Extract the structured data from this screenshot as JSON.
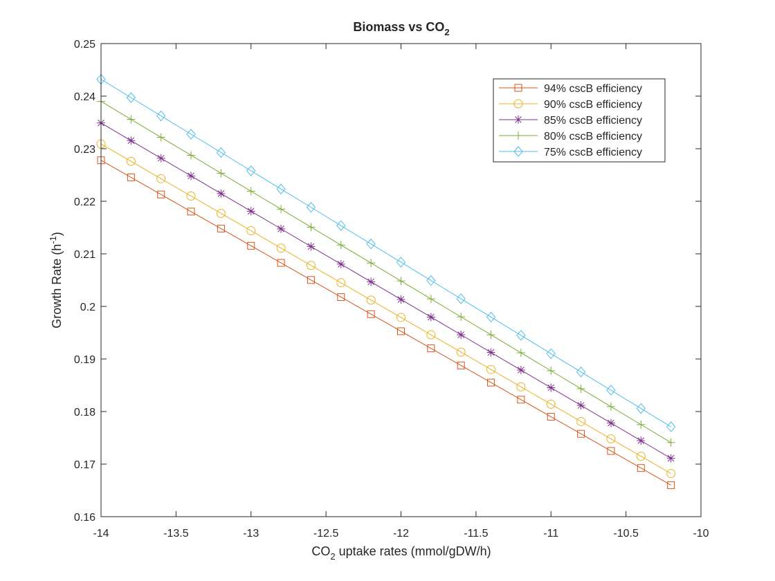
{
  "chart_data": {
    "type": "line",
    "title": "Biomass vs CO",
    "title_sub": "2",
    "xlabel_pre": "CO",
    "xlabel_sub": "2",
    "xlabel_post": " uptake rates (mmol/gDW/h)",
    "ylabel_pre": "Growth Rate (h",
    "ylabel_sup": "-1",
    "ylabel_post": ")",
    "xlim": [
      -14,
      -10
    ],
    "ylim": [
      0.16,
      0.25
    ],
    "x_ticks": [
      -14,
      -13.5,
      -13,
      -12.5,
      -12,
      -11.5,
      -11,
      -10.5,
      -10
    ],
    "x_tick_labels": [
      "-14",
      "-13.5",
      "-13",
      "-12.5",
      "-12",
      "-11.5",
      "-11",
      "-10.5",
      "-10"
    ],
    "y_ticks": [
      0.16,
      0.17,
      0.18,
      0.19,
      0.2,
      0.21,
      0.22,
      0.23,
      0.24,
      0.25
    ],
    "y_tick_labels": [
      "0.16",
      "0.17",
      "0.18",
      "0.19",
      "0.2",
      "0.21",
      "0.22",
      "0.23",
      "0.24",
      "0.25"
    ],
    "grid": false,
    "legend_position": "top-right",
    "x": [
      -14,
      -13.8,
      -13.6,
      -13.4,
      -13.2,
      -13,
      -12.8,
      -12.6,
      -12.4,
      -12.2,
      -12,
      -11.8,
      -11.6,
      -11.4,
      -11.2,
      -11,
      -10.8,
      -10.6,
      -10.4,
      -10.2
    ],
    "series": [
      {
        "name": "94% cscB efficiency",
        "color": "#D95319",
        "marker": "square",
        "y_start": 0.2278,
        "y_end": 0.166
      },
      {
        "name": "90% cscB efficiency",
        "color": "#EDB120",
        "marker": "circle",
        "y_start": 0.2309,
        "y_end": 0.1682
      },
      {
        "name": "85% cscB efficiency",
        "color": "#7E2F8E",
        "marker": "asterisk",
        "y_start": 0.2349,
        "y_end": 0.1711
      },
      {
        "name": "80% cscB efficiency",
        "color": "#77AC30",
        "marker": "plus",
        "y_start": 0.239,
        "y_end": 0.1741
      },
      {
        "name": "75% cscB efficiency",
        "color": "#4DBEEE",
        "marker": "diamond",
        "y_start": 0.2432,
        "y_end": 0.1771
      }
    ]
  }
}
